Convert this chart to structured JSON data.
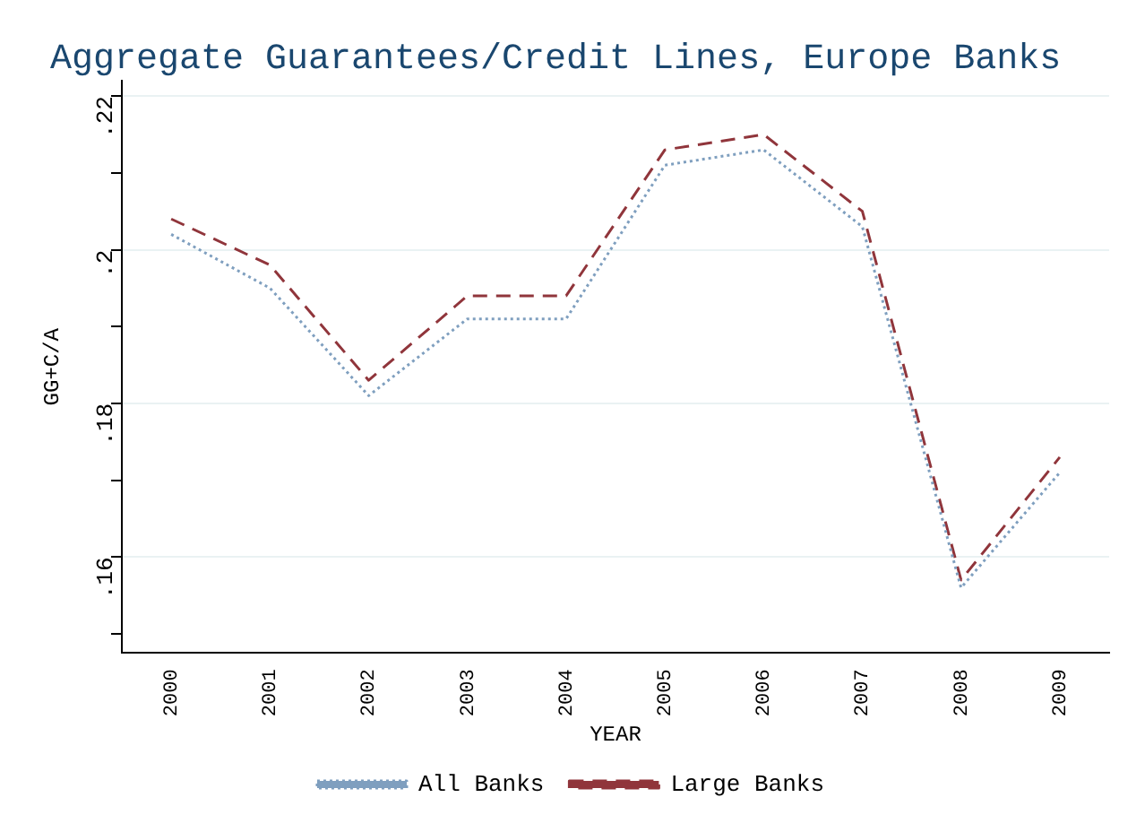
{
  "chart_data": {
    "type": "line",
    "title": "Aggregate Guarantees/Credit Lines, Europe Banks",
    "xlabel": "YEAR",
    "ylabel": "GG+C/A",
    "categories": [
      "2000",
      "2001",
      "2002",
      "2003",
      "2004",
      "2005",
      "2006",
      "2007",
      "2008",
      "2009"
    ],
    "series": [
      {
        "name": "All Banks",
        "color": "#7f9fbf",
        "line_style": "dotted",
        "values": [
          0.202,
          0.195,
          0.181,
          0.191,
          0.191,
          0.211,
          0.213,
          0.203,
          0.156,
          0.171
        ]
      },
      {
        "name": "Large Banks",
        "color": "#90353b",
        "line_style": "dashed",
        "values": [
          0.204,
          0.198,
          0.183,
          0.194,
          0.194,
          0.213,
          0.215,
          0.205,
          0.157,
          0.173
        ]
      }
    ],
    "ylim": [
      0.1475,
      0.222
    ],
    "yticks": [
      {
        "value": 0.15,
        "label": null
      },
      {
        "value": 0.16,
        "label": ".16"
      },
      {
        "value": 0.17,
        "label": null
      },
      {
        "value": 0.18,
        "label": ".18"
      },
      {
        "value": 0.19,
        "label": null
      },
      {
        "value": 0.2,
        "label": ".2"
      },
      {
        "value": 0.21,
        "label": null
      },
      {
        "value": 0.22,
        "label": ".22"
      }
    ],
    "grid": "y",
    "legend": "bottom",
    "marker": "none"
  }
}
